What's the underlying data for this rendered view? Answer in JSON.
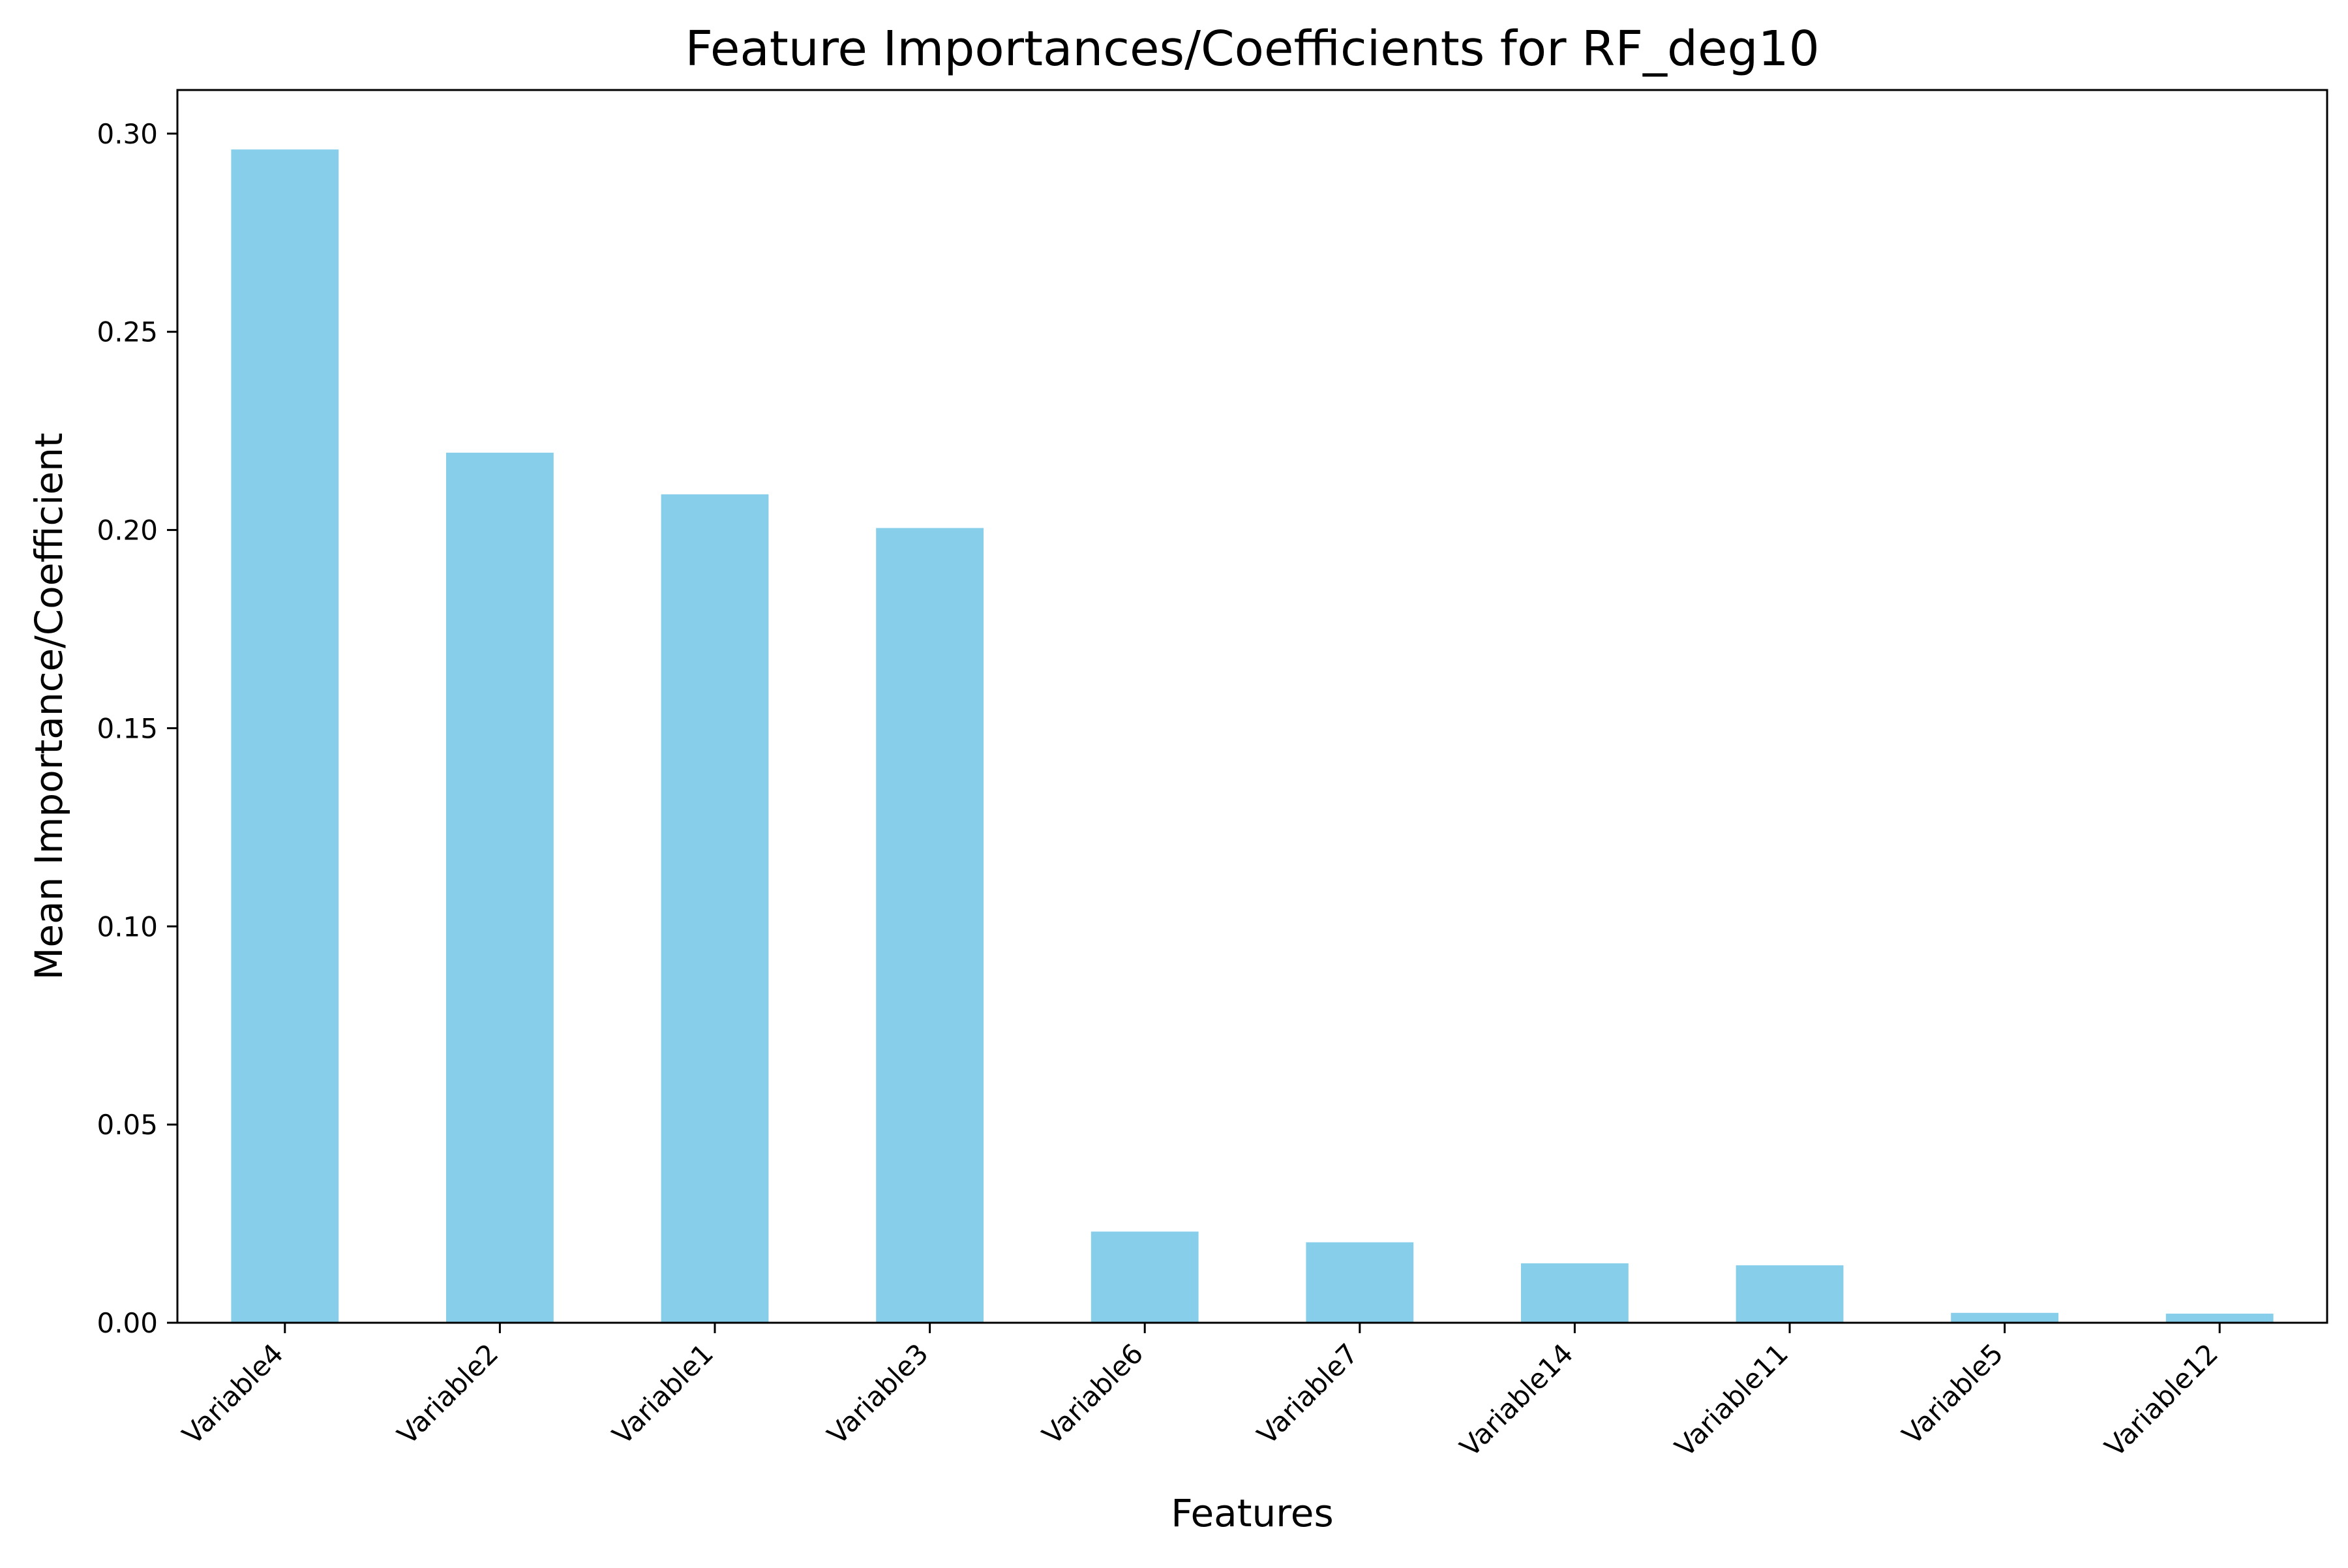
{
  "chart_data": {
    "type": "bar",
    "title": "Feature Importances/Coefficients for RF_deg10",
    "xlabel": "Features",
    "ylabel": "Mean Importance/Coefficient",
    "categories": [
      "Variable4",
      "Variable2",
      "Variable1",
      "Variable3",
      "Variable6",
      "Variable7",
      "Variable14",
      "Variable11",
      "Variable5",
      "Variable12"
    ],
    "values": [
      0.296,
      0.2195,
      0.209,
      0.2005,
      0.023,
      0.0203,
      0.015,
      0.0145,
      0.0025,
      0.0023
    ],
    "ylim": [
      0,
      0.311
    ],
    "yticks": [
      0.0,
      0.05,
      0.1,
      0.15,
      0.2,
      0.25,
      0.3
    ],
    "ytick_labels": [
      "0.00",
      "0.05",
      "0.10",
      "0.15",
      "0.20",
      "0.25",
      "0.30"
    ],
    "bar_color": "#87CEEB",
    "grid": false,
    "legend": "none"
  }
}
